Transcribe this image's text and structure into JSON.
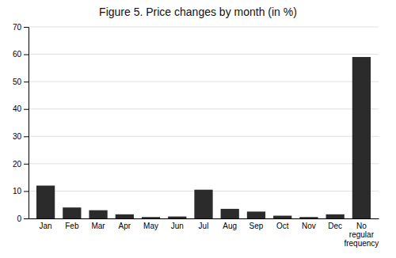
{
  "chart_data": {
    "type": "bar",
    "title": "Figure 5. Price changes by month (in %)",
    "categories": [
      "Jan",
      "Feb",
      "Mar",
      "Apr",
      "May",
      "Jun",
      "Jul",
      "Aug",
      "Sep",
      "Oct",
      "Nov",
      "Dec",
      "No\nregular\nfrequency"
    ],
    "values": [
      12,
      4,
      3,
      1.5,
      0.5,
      0.7,
      10.5,
      3.5,
      2.5,
      1.0,
      0.5,
      1.5,
      59
    ],
    "color": "#2b2b2b",
    "ylim": [
      0,
      70
    ],
    "yticks": [
      0,
      10,
      20,
      30,
      40,
      50,
      60,
      70
    ],
    "grid": true
  }
}
